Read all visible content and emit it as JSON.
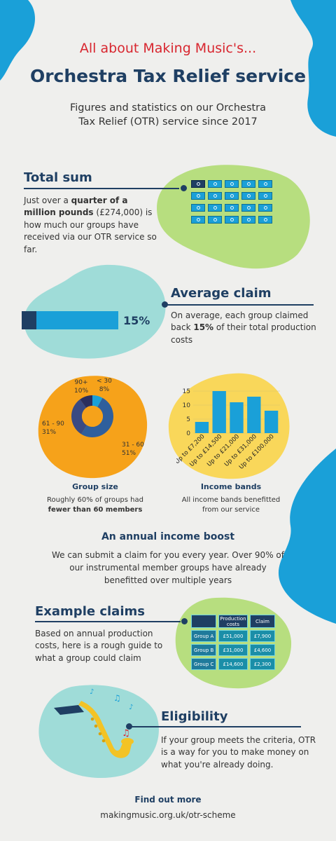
{
  "header": {
    "pretitle": "All about Making Music's...",
    "title": "Orchestra Tax Relief service",
    "subtitle_line1": "Figures and statistics on our Orchestra",
    "subtitle_line2": "Tax Relief (OTR) service since 2017"
  },
  "total_sum": {
    "heading": "Total sum",
    "text_prefix": "Just over a ",
    "text_bold": "quarter of a million pounds",
    "text_suffix": " (£274,000) is how much our groups have received via our OTR service so far."
  },
  "average_claim": {
    "heading": "Average claim",
    "value_label": "15%",
    "fraction": 0.15,
    "text_prefix": "On average, each group claimed back ",
    "text_bold": "15%",
    "text_suffix": " of their total production costs"
  },
  "group_size": {
    "heading": "Group size",
    "text_line1": "Roughly 60% of groups had",
    "text_bold": "fewer than 60 members",
    "segments": [
      {
        "label": "< 30",
        "pct": "8%",
        "value": 8,
        "color": "#1aa0d8"
      },
      {
        "label": "31 - 60",
        "pct": "51%",
        "value": 51,
        "color": "#2f5f9c"
      },
      {
        "label": "61 - 90",
        "pct": "31%",
        "value": 31,
        "color": "#3a4a82"
      },
      {
        "label": "90+",
        "pct": "10%",
        "value": 10,
        "color": "#2b2f5e"
      }
    ]
  },
  "income_bands": {
    "heading": "Income bands",
    "text_line1": "All income bands benefitted",
    "text_line2": "from our service"
  },
  "chart_data": {
    "type": "bar",
    "categories": [
      "Up to £7,200",
      "Up to £14,500",
      "Up to £21,000",
      "Up to £31,000",
      "Up to £100,000"
    ],
    "values": [
      4,
      15,
      11,
      13,
      8
    ],
    "yticks": [
      "15",
      "10",
      "5",
      "0"
    ],
    "ylim": [
      0,
      17
    ],
    "bar_color": "#1aa0d8",
    "grid": true
  },
  "annual": {
    "heading": "An annual income boost",
    "line1": "We can submit a claim for you every year. Over 90% of",
    "line2": "our instrumental member groups have already",
    "line3": "benefitted over multiple years"
  },
  "example_claims": {
    "heading": "Example claims",
    "text": "Based on annual production costs, here is a rough guide to what a group could claim",
    "columns": [
      "",
      "Production costs",
      "Claim"
    ],
    "rows": [
      [
        "Group A",
        "£51,000",
        "£7,900"
      ],
      [
        "Group B",
        "£31,000",
        "£4,600"
      ],
      [
        "Group C",
        "£14,600",
        "£2,300"
      ]
    ]
  },
  "eligibility": {
    "heading": "Eligibility",
    "text": "If your group meets the criteria, OTR is a way for you to make money on what you're already doing."
  },
  "footer": {
    "label": "Find out more",
    "url": "makingmusic.org.uk/otr-scheme"
  },
  "colors": {
    "navy": "#1f3f63",
    "red": "#d8262f",
    "blue": "#1aa0d8",
    "green": "#b7de7f",
    "teal": "#9fdcd8",
    "orange": "#f6a21a",
    "yellow": "#f9d75a"
  }
}
